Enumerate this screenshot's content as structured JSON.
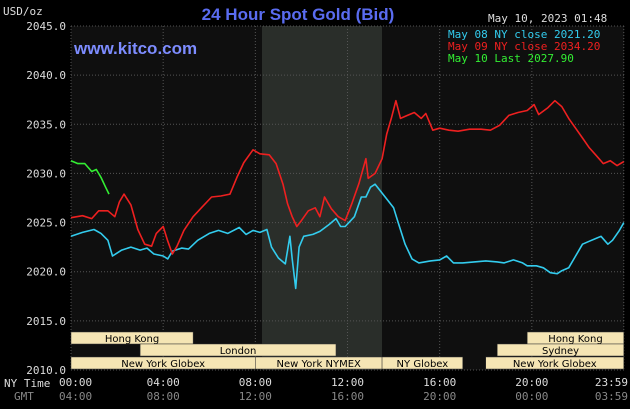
{
  "chart_data": {
    "type": "line",
    "title": "24 Hour Spot Gold (Bid)",
    "website": "www.kitco.com",
    "unit_label": "USD/oz",
    "date_label": "May 10, 2023 01:48",
    "x_tick_labels": [
      "00:00",
      "04:00",
      "08:00",
      "12:00",
      "16:00",
      "20:00",
      "23:59"
    ],
    "x_tick_labels_gmt": [
      "04:00",
      "08:00",
      "12:00",
      "16:00",
      "20:00",
      "00:00",
      "03:59"
    ],
    "x_row_labels": [
      "NY Time",
      "GMT"
    ],
    "ylim": [
      2010,
      2045
    ],
    "yticks": [
      2010.0,
      2015.0,
      2020.0,
      2025.0,
      2030.0,
      2035.0,
      2040.0,
      2045.0
    ],
    "grid": true,
    "legend_position": "top-right",
    "series": [
      {
        "name": "May 08 NY close 2021.20",
        "color": "#33ccee",
        "points": [
          [
            0,
            2023.6
          ],
          [
            0.5,
            2024.0
          ],
          [
            1,
            2024.3
          ],
          [
            1.3,
            2023.9
          ],
          [
            1.6,
            2023.2
          ],
          [
            1.8,
            2021.6
          ],
          [
            2.2,
            2022.2
          ],
          [
            2.6,
            2022.5
          ],
          [
            3.0,
            2022.2
          ],
          [
            3.3,
            2022.4
          ],
          [
            3.6,
            2021.8
          ],
          [
            4.0,
            2021.6
          ],
          [
            4.2,
            2021.3
          ],
          [
            4.4,
            2022.1
          ],
          [
            4.8,
            2022.4
          ],
          [
            5.1,
            2022.3
          ],
          [
            5.5,
            2023.2
          ],
          [
            6.0,
            2023.9
          ],
          [
            6.4,
            2024.2
          ],
          [
            6.8,
            2023.9
          ],
          [
            7.3,
            2024.5
          ],
          [
            7.6,
            2023.8
          ],
          [
            7.9,
            2024.2
          ],
          [
            8.2,
            2024.0
          ],
          [
            8.5,
            2024.3
          ],
          [
            8.7,
            2022.5
          ],
          [
            9.0,
            2021.4
          ],
          [
            9.3,
            2020.8
          ],
          [
            9.5,
            2023.6
          ],
          [
            9.6,
            2021.3
          ],
          [
            9.75,
            2018.3
          ],
          [
            9.9,
            2022.5
          ],
          [
            10.1,
            2023.6
          ],
          [
            10.5,
            2023.8
          ],
          [
            10.8,
            2024.1
          ],
          [
            11.2,
            2024.8
          ],
          [
            11.5,
            2025.4
          ],
          [
            11.7,
            2024.6
          ],
          [
            11.9,
            2024.6
          ],
          [
            12.3,
            2025.6
          ],
          [
            12.6,
            2027.6
          ],
          [
            12.8,
            2027.6
          ],
          [
            13.0,
            2028.6
          ],
          [
            13.2,
            2028.9
          ],
          [
            13.5,
            2028.0
          ],
          [
            13.8,
            2027.1
          ],
          [
            14.0,
            2026.5
          ],
          [
            14.2,
            2025.0
          ],
          [
            14.5,
            2022.8
          ],
          [
            14.8,
            2021.3
          ],
          [
            15.1,
            2020.9
          ],
          [
            15.6,
            2021.1
          ],
          [
            16.0,
            2021.2
          ],
          [
            16.3,
            2021.6
          ],
          [
            16.6,
            2020.9
          ],
          [
            17.0,
            2020.9
          ],
          [
            17.5,
            2021.0
          ],
          [
            18.0,
            2021.1
          ],
          [
            18.5,
            2021.0
          ],
          [
            18.8,
            2020.9
          ],
          [
            19.2,
            2021.2
          ],
          [
            19.6,
            2020.9
          ],
          [
            19.8,
            2020.6
          ],
          [
            20.2,
            2020.6
          ],
          [
            20.5,
            2020.4
          ],
          [
            20.8,
            2019.9
          ],
          [
            21.1,
            2019.8
          ],
          [
            21.3,
            2020.1
          ],
          [
            21.6,
            2020.4
          ],
          [
            21.9,
            2021.6
          ],
          [
            22.2,
            2022.8
          ],
          [
            22.5,
            2023.1
          ],
          [
            22.8,
            2023.4
          ],
          [
            23.0,
            2023.6
          ],
          [
            23.3,
            2022.8
          ],
          [
            23.5,
            2023.2
          ],
          [
            23.8,
            2024.2
          ],
          [
            23.99,
            2025.0
          ]
        ]
      },
      {
        "name": "May 09 NY close 2034.20",
        "color": "#ee2020",
        "points": [
          [
            0,
            2025.5
          ],
          [
            0.5,
            2025.7
          ],
          [
            0.9,
            2025.4
          ],
          [
            1.2,
            2026.2
          ],
          [
            1.6,
            2026.2
          ],
          [
            1.9,
            2025.6
          ],
          [
            2.1,
            2027.1
          ],
          [
            2.3,
            2027.9
          ],
          [
            2.6,
            2026.8
          ],
          [
            2.9,
            2024.3
          ],
          [
            3.2,
            2022.8
          ],
          [
            3.5,
            2022.6
          ],
          [
            3.7,
            2023.9
          ],
          [
            4.0,
            2024.6
          ],
          [
            4.2,
            2023.1
          ],
          [
            4.4,
            2021.8
          ],
          [
            4.6,
            2022.6
          ],
          [
            4.9,
            2024.2
          ],
          [
            5.3,
            2025.6
          ],
          [
            5.7,
            2026.6
          ],
          [
            6.1,
            2027.6
          ],
          [
            6.5,
            2027.7
          ],
          [
            6.9,
            2027.9
          ],
          [
            7.2,
            2029.6
          ],
          [
            7.5,
            2031.1
          ],
          [
            7.9,
            2032.4
          ],
          [
            8.2,
            2032.0
          ],
          [
            8.6,
            2031.9
          ],
          [
            8.9,
            2031.0
          ],
          [
            9.2,
            2028.9
          ],
          [
            9.4,
            2026.9
          ],
          [
            9.6,
            2025.6
          ],
          [
            9.8,
            2024.6
          ],
          [
            10.0,
            2025.2
          ],
          [
            10.3,
            2026.2
          ],
          [
            10.6,
            2026.5
          ],
          [
            10.8,
            2025.6
          ],
          [
            11.0,
            2027.6
          ],
          [
            11.3,
            2026.4
          ],
          [
            11.6,
            2025.6
          ],
          [
            11.9,
            2025.2
          ],
          [
            12.2,
            2027.0
          ],
          [
            12.5,
            2029.0
          ],
          [
            12.8,
            2031.5
          ],
          [
            12.9,
            2029.5
          ],
          [
            13.2,
            2030.0
          ],
          [
            13.5,
            2031.5
          ],
          [
            13.7,
            2034.0
          ],
          [
            13.9,
            2035.6
          ],
          [
            14.1,
            2037.4
          ],
          [
            14.3,
            2035.6
          ],
          [
            14.6,
            2035.9
          ],
          [
            14.9,
            2036.2
          ],
          [
            15.2,
            2035.6
          ],
          [
            15.4,
            2036.1
          ],
          [
            15.7,
            2034.4
          ],
          [
            16.0,
            2034.6
          ],
          [
            16.4,
            2034.4
          ],
          [
            16.8,
            2034.3
          ],
          [
            17.3,
            2034.5
          ],
          [
            17.8,
            2034.5
          ],
          [
            18.2,
            2034.4
          ],
          [
            18.6,
            2034.9
          ],
          [
            19.0,
            2035.9
          ],
          [
            19.4,
            2036.2
          ],
          [
            19.8,
            2036.4
          ],
          [
            20.1,
            2037.0
          ],
          [
            20.3,
            2036.0
          ],
          [
            20.7,
            2036.7
          ],
          [
            21.0,
            2037.4
          ],
          [
            21.3,
            2036.8
          ],
          [
            21.6,
            2035.6
          ],
          [
            21.9,
            2034.6
          ],
          [
            22.2,
            2033.6
          ],
          [
            22.5,
            2032.6
          ],
          [
            22.8,
            2031.8
          ],
          [
            23.1,
            2031.0
          ],
          [
            23.4,
            2031.3
          ],
          [
            23.7,
            2030.8
          ],
          [
            23.99,
            2031.2
          ]
        ]
      },
      {
        "name": "May 10 Last 2027.90",
        "color": "#33ee33",
        "points": [
          [
            0,
            2031.3
          ],
          [
            0.3,
            2031.0
          ],
          [
            0.6,
            2031.0
          ],
          [
            0.9,
            2030.2
          ],
          [
            1.1,
            2030.4
          ],
          [
            1.3,
            2029.6
          ],
          [
            1.5,
            2028.6
          ],
          [
            1.65,
            2027.9
          ]
        ]
      }
    ]
  },
  "sessions": {
    "row1": [
      {
        "label": "Hong Kong",
        "start": 0,
        "end": 5.3
      },
      {
        "label": "Hong Kong",
        "start": 19.8,
        "end": 23.99
      }
    ],
    "row2": [
      {
        "label": "London",
        "start": 3.0,
        "end": 11.5
      },
      {
        "label": "Sydney",
        "start": 18.5,
        "end": 23.99
      }
    ],
    "row3": [
      {
        "label": "New York Globex",
        "start": 0,
        "end": 8.0
      },
      {
        "label": "New York NYMEX",
        "start": 8.0,
        "end": 13.5
      },
      {
        "label": "NY Globex",
        "start": 13.5,
        "end": 17.0
      },
      {
        "label": "New York Globex",
        "start": 18.0,
        "end": 23.99
      }
    ]
  },
  "colors": {
    "background": "#000000",
    "plot_bg": "#0f0f0f",
    "highlight_band": "#2a2e2a",
    "grid": "#555555",
    "session_box": "#f5e5b4"
  }
}
